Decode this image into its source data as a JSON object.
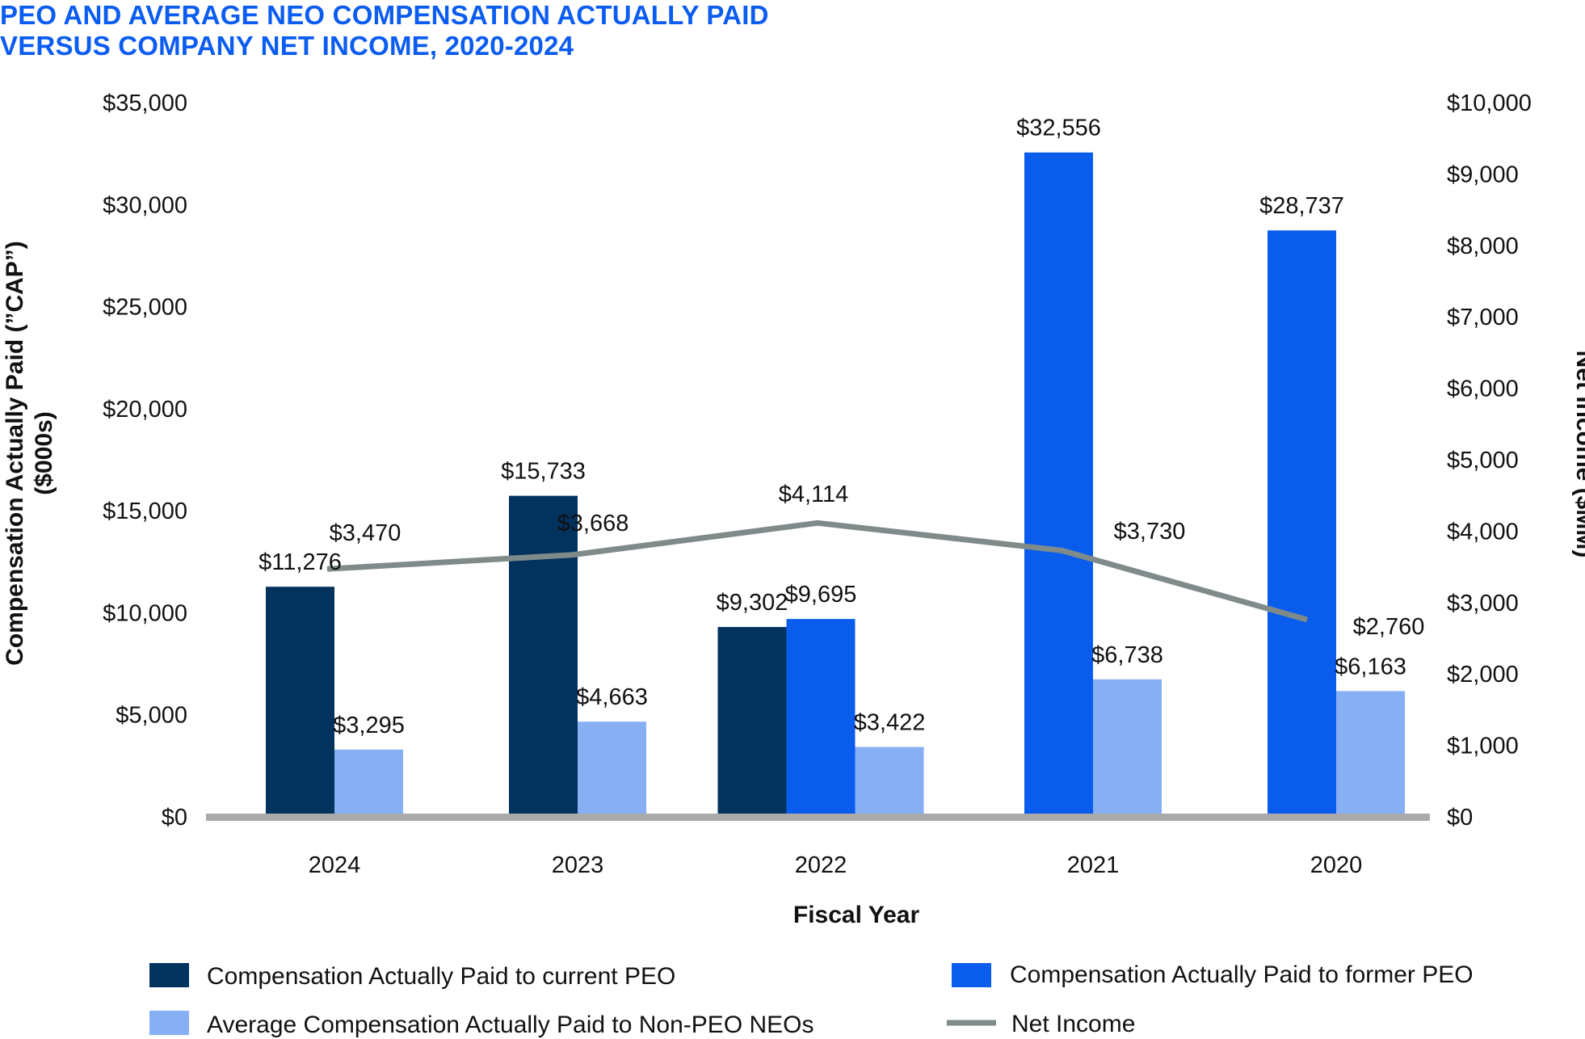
{
  "chart_data": {
    "type": "bar",
    "title_lines": [
      "PEO AND AVERAGE NEO COMPENSATION ACTUALLY PAID",
      "VERSUS COMPANY NET INCOME, 2020-2024"
    ],
    "xlabel": "Fiscal Year",
    "ylabel_left_lines": [
      "Compensation Actually Paid (”CAP”)",
      "($000s)"
    ],
    "ylabel_right": "Net Income ($MM)",
    "categories": [
      "2024",
      "2023",
      "2022",
      "2021",
      "2020"
    ],
    "ylim_left": [
      0,
      35000
    ],
    "ylim_right": [
      0,
      10000
    ],
    "yticks_left": [
      "$0",
      "$5,000",
      "$10,000",
      "$15,000",
      "$20,000",
      "$25,000",
      "$30,000",
      "$35,000"
    ],
    "yticks_right": [
      "$0",
      "$1,000",
      "$2,000",
      "$3,000",
      "$4,000",
      "$5,000",
      "$6,000",
      "$7,000",
      "$8,000",
      "$9,000",
      "$10,000"
    ],
    "series": [
      {
        "key": "current_peo",
        "name": "Compensation Actually Paid to current PEO",
        "color": "#02335f",
        "axis": "left",
        "values": [
          11276,
          15733,
          9302,
          null,
          null
        ],
        "labels": [
          "$11,276",
          "$15,733",
          "$9,302",
          "",
          ""
        ]
      },
      {
        "key": "former_peo",
        "name": "Compensation Actually Paid to former PEO",
        "color": "#0a5ced",
        "axis": "left",
        "values": [
          null,
          null,
          9695,
          32556,
          28737
        ],
        "labels": [
          "",
          "",
          "$9,695",
          "$32,556",
          "$28,737"
        ]
      },
      {
        "key": "non_peo",
        "name": "Average Compensation Actually Paid to Non-PEO NEOs",
        "color": "#86aff4",
        "axis": "left",
        "values": [
          3295,
          4663,
          3422,
          6738,
          6163
        ],
        "labels": [
          "$3,295",
          "$4,663",
          "$3,422",
          "$6,738",
          "$6,163"
        ]
      },
      {
        "key": "net_income",
        "name": "Net Income",
        "color": "#7f8b8b",
        "axis": "right",
        "type": "line",
        "values": [
          3470,
          3668,
          4114,
          3730,
          2760
        ],
        "labels": [
          "$3,470",
          "$3,668",
          "$4,114",
          "$3,730",
          "$2,760"
        ]
      }
    ],
    "legend": [
      {
        "series": "current_peo",
        "label": "Compensation Actually Paid to current PEO"
      },
      {
        "series": "former_peo",
        "label": "Compensation Actually Paid to former PEO"
      },
      {
        "series": "non_peo",
        "label": "Average Compensation Actually Paid to Non-PEO NEOs"
      },
      {
        "series": "net_income",
        "label": "Net Income"
      }
    ]
  }
}
